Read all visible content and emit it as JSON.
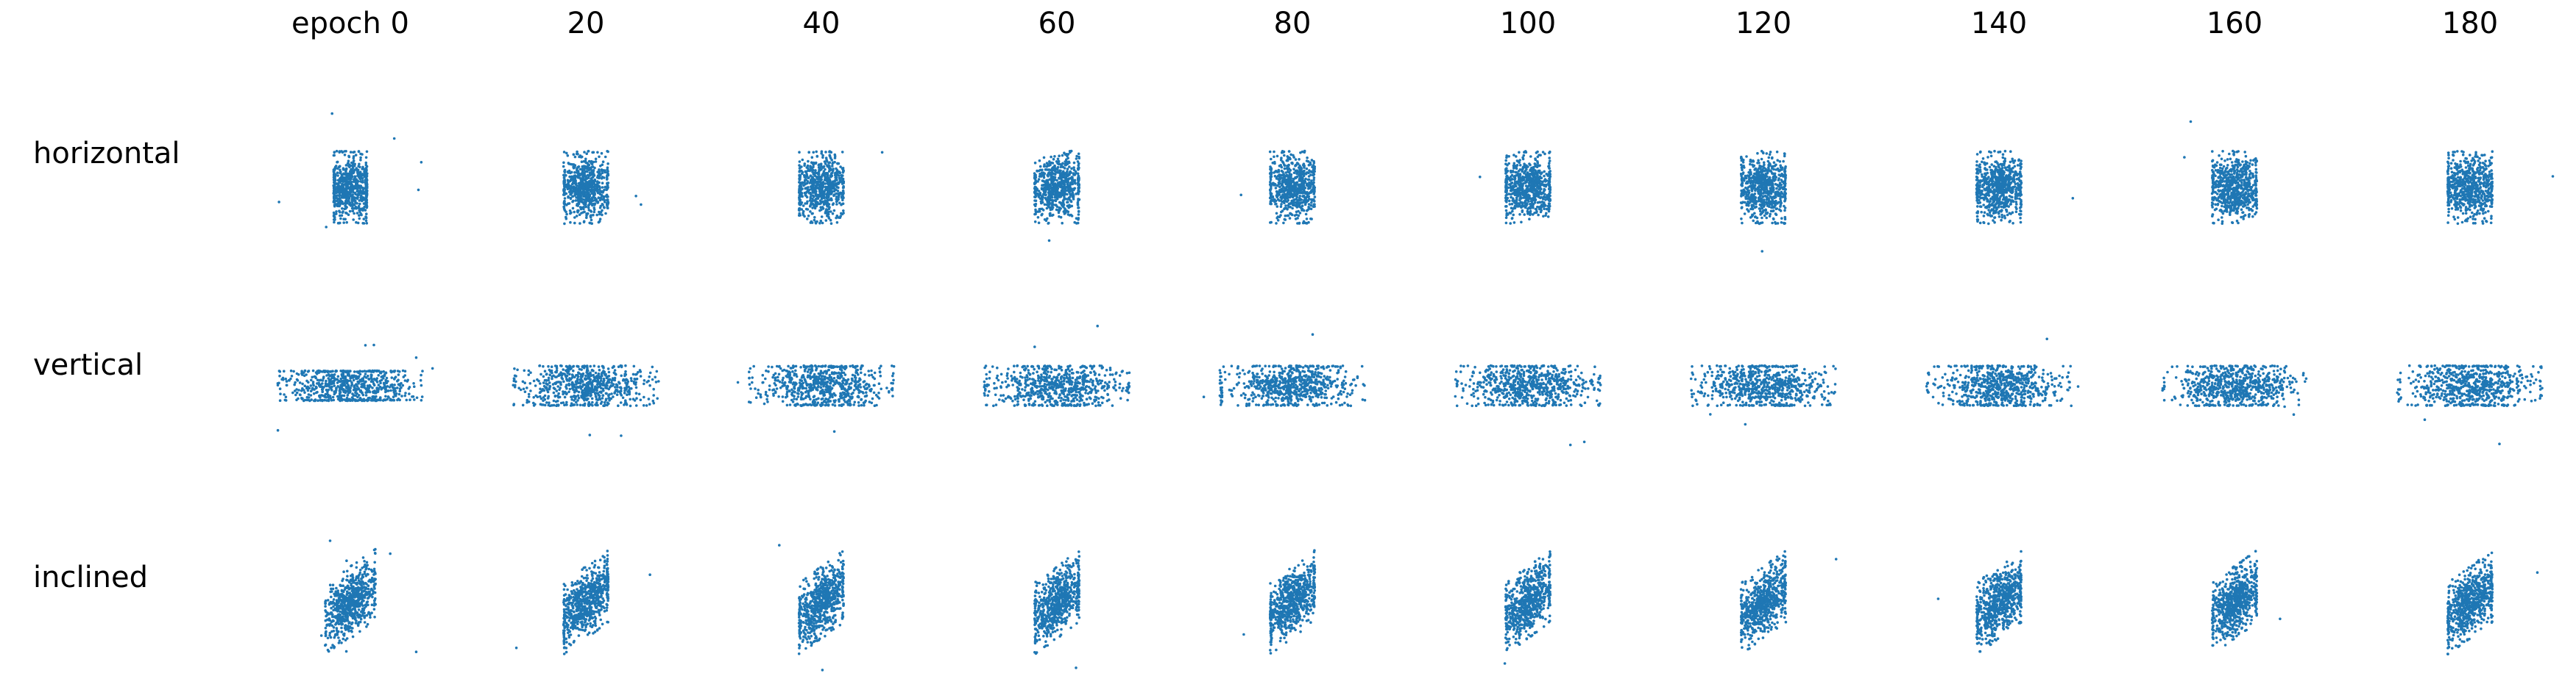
{
  "chart_data": {
    "type": "scatter",
    "columns": [
      "epoch 0",
      "20",
      "40",
      "60",
      "80",
      "100",
      "120",
      "140",
      "160",
      "180"
    ],
    "rows": [
      "horizontal",
      "vertical",
      "inclined"
    ],
    "point_color": "#1f77b4",
    "axes": "off",
    "grid": false,
    "panels": {
      "horizontal": [
        {
          "x_spread": 0.9,
          "y_spread": 1.0,
          "x_clip": 0.6,
          "y_clip": 1.3,
          "tilt": 0,
          "outliers": 6
        },
        {
          "x_spread": 0.9,
          "y_spread": 1.0,
          "x_clip": 0.8,
          "y_clip": 1.3,
          "tilt": 0,
          "outliers": 2
        },
        {
          "x_spread": 0.9,
          "y_spread": 1.0,
          "x_clip": 0.8,
          "y_clip": 1.3,
          "tilt": 0,
          "outliers": 1
        },
        {
          "x_spread": 0.9,
          "y_spread": 1.0,
          "x_clip": 0.8,
          "y_clip": 1.3,
          "tilt": 0,
          "outliers": 1
        },
        {
          "x_spread": 0.9,
          "y_spread": 1.0,
          "x_clip": 0.8,
          "y_clip": 1.3,
          "tilt": 0,
          "outliers": 1
        },
        {
          "x_spread": 0.9,
          "y_spread": 1.0,
          "x_clip": 0.8,
          "y_clip": 1.3,
          "tilt": 0,
          "outliers": 1
        },
        {
          "x_spread": 0.9,
          "y_spread": 1.0,
          "x_clip": 0.8,
          "y_clip": 1.3,
          "tilt": 0,
          "outliers": 1
        },
        {
          "x_spread": 0.9,
          "y_spread": 1.0,
          "x_clip": 0.8,
          "y_clip": 1.3,
          "tilt": 0,
          "outliers": 1
        },
        {
          "x_spread": 0.9,
          "y_spread": 1.0,
          "x_clip": 0.8,
          "y_clip": 1.3,
          "tilt": 0,
          "outliers": 2
        },
        {
          "x_spread": 0.9,
          "y_spread": 1.0,
          "x_clip": 0.8,
          "y_clip": 1.3,
          "tilt": 0,
          "outliers": 1
        }
      ],
      "vertical": [
        {
          "x_spread": 1.0,
          "y_spread": 0.9,
          "x_clip": 1.3,
          "y_clip": 0.6,
          "tilt": 0,
          "outliers": 6
        },
        {
          "x_spread": 1.0,
          "y_spread": 0.9,
          "x_clip": 1.3,
          "y_clip": 0.8,
          "tilt": 0,
          "outliers": 2
        },
        {
          "x_spread": 1.0,
          "y_spread": 0.9,
          "x_clip": 1.3,
          "y_clip": 0.8,
          "tilt": 0,
          "outliers": 2
        },
        {
          "x_spread": 1.0,
          "y_spread": 0.9,
          "x_clip": 1.3,
          "y_clip": 0.8,
          "tilt": 0,
          "outliers": 2
        },
        {
          "x_spread": 1.0,
          "y_spread": 0.9,
          "x_clip": 1.3,
          "y_clip": 0.8,
          "tilt": 0,
          "outliers": 2
        },
        {
          "x_spread": 1.0,
          "y_spread": 0.9,
          "x_clip": 1.3,
          "y_clip": 0.8,
          "tilt": 0,
          "outliers": 2
        },
        {
          "x_spread": 1.0,
          "y_spread": 0.9,
          "x_clip": 1.3,
          "y_clip": 0.8,
          "tilt": 0,
          "outliers": 2
        },
        {
          "x_spread": 1.0,
          "y_spread": 0.9,
          "x_clip": 1.3,
          "y_clip": 0.8,
          "tilt": 0,
          "outliers": 2
        },
        {
          "x_spread": 1.0,
          "y_spread": 0.9,
          "x_clip": 1.3,
          "y_clip": 0.8,
          "tilt": 0,
          "outliers": 2
        },
        {
          "x_spread": 1.0,
          "y_spread": 0.9,
          "x_clip": 1.3,
          "y_clip": 0.8,
          "tilt": 0,
          "outliers": 2
        }
      ],
      "inclined": [
        {
          "x_spread": 0.9,
          "y_spread": 1.0,
          "x_clip": 0.9,
          "y_clip": 1.3,
          "tilt": 0.45,
          "outliers": 6
        },
        {
          "x_spread": 0.9,
          "y_spread": 1.0,
          "x_clip": 0.8,
          "y_clip": 1.3,
          "tilt": 0.45,
          "outliers": 2
        },
        {
          "x_spread": 0.9,
          "y_spread": 1.0,
          "x_clip": 0.8,
          "y_clip": 1.3,
          "tilt": 0.45,
          "outliers": 2
        },
        {
          "x_spread": 0.9,
          "y_spread": 1.0,
          "x_clip": 0.8,
          "y_clip": 1.3,
          "tilt": 0.45,
          "outliers": 1
        },
        {
          "x_spread": 0.9,
          "y_spread": 1.0,
          "x_clip": 0.8,
          "y_clip": 1.3,
          "tilt": 0.45,
          "outliers": 1
        },
        {
          "x_spread": 0.9,
          "y_spread": 1.0,
          "x_clip": 0.8,
          "y_clip": 1.3,
          "tilt": 0.45,
          "outliers": 1
        },
        {
          "x_spread": 0.9,
          "y_spread": 1.0,
          "x_clip": 0.8,
          "y_clip": 1.3,
          "tilt": 0.45,
          "outliers": 1
        },
        {
          "x_spread": 0.9,
          "y_spread": 1.0,
          "x_clip": 0.8,
          "y_clip": 1.3,
          "tilt": 0.45,
          "outliers": 1
        },
        {
          "x_spread": 0.9,
          "y_spread": 1.0,
          "x_clip": 0.8,
          "y_clip": 1.3,
          "tilt": 0.45,
          "outliers": 1
        },
        {
          "x_spread": 0.9,
          "y_spread": 1.0,
          "x_clip": 0.8,
          "y_clip": 1.3,
          "tilt": 0.45,
          "outliers": 1
        }
      ]
    }
  }
}
